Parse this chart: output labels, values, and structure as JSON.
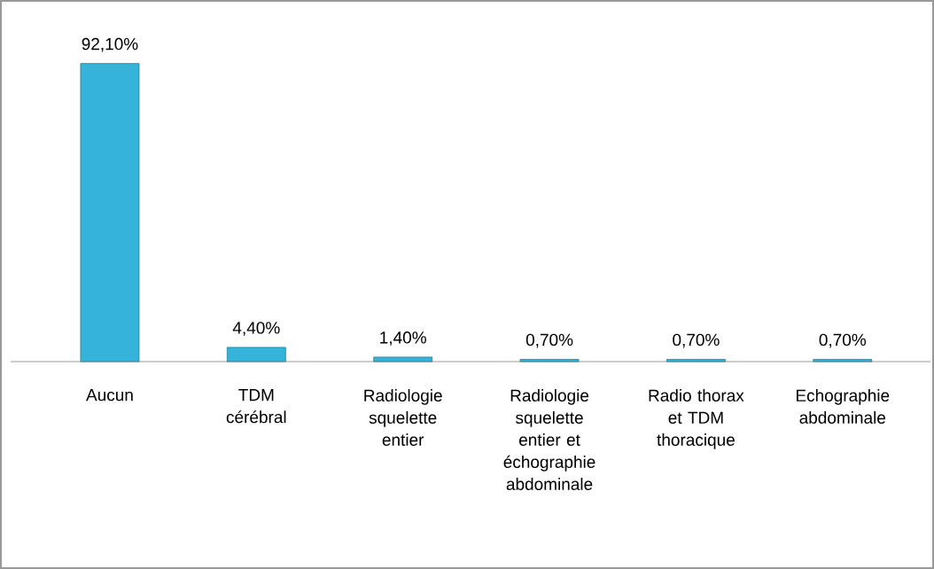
{
  "chart_data": {
    "type": "bar",
    "categories": [
      "Aucun",
      "TDM cérébral",
      "Radiologie squelette entier",
      "Radiologie squelette entier et échographie abdominale",
      "Radio thorax et TDM thoracique",
      "Echographie abdominale"
    ],
    "values": [
      92.1,
      4.4,
      1.4,
      0.7,
      0.7,
      0.7
    ],
    "value_labels": [
      "92,10%",
      "4,40%",
      "1,40%",
      "0,70%",
      "0,70%",
      "0,70%"
    ],
    "color": "#35b3d9"
  }
}
